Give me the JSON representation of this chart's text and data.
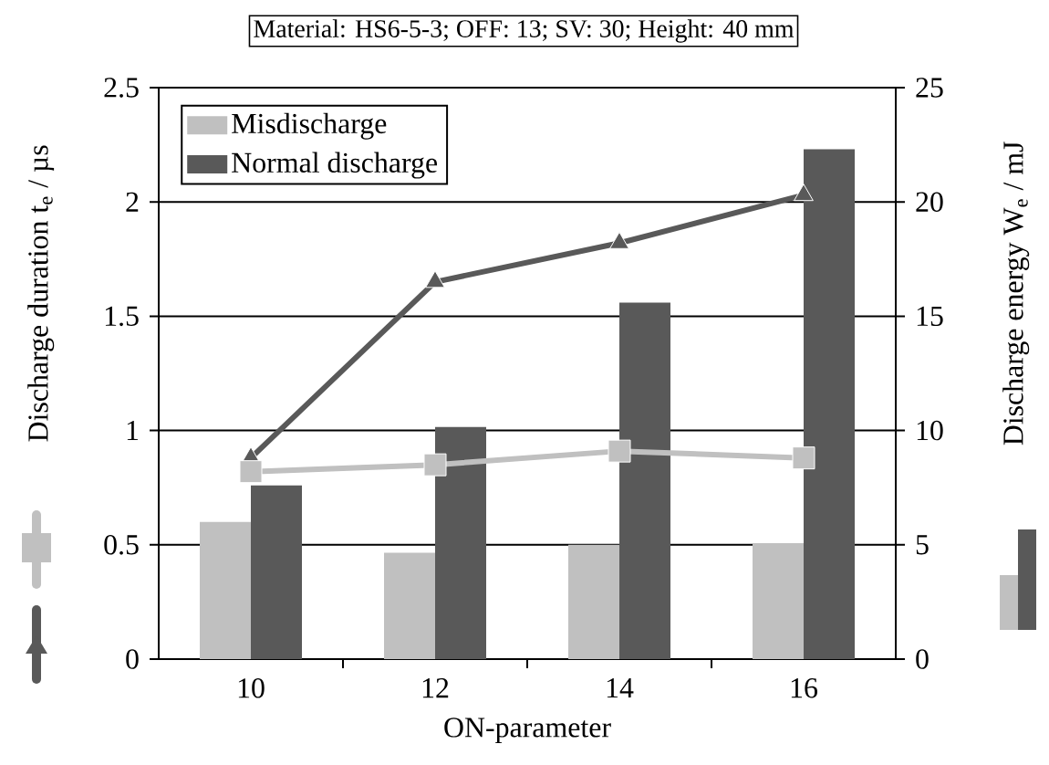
{
  "chart_data": {
    "type": "bar",
    "title": "Material: HS6-5-3; OFF: 13; SV: 30; Height: 40 mm",
    "xlabel": "ON-parameter",
    "ylabel": "Discharge duration t$_{e}$ / µs",
    "y2label": "Discharge energy W$_{e}$ / mJ",
    "categories": [
      "10",
      "12",
      "14",
      "16"
    ],
    "series": [
      {
        "name": "Misdischarge",
        "axis": "y2",
        "color": "#c0c0c0",
        "values": [
          6.0,
          4.65,
          5.0,
          5.05
        ]
      },
      {
        "name": "Normal discharge",
        "axis": "y2",
        "color": "#595959",
        "values": [
          7.6,
          10.15,
          15.6,
          22.3
        ]
      },
      {
        "type": "line",
        "axis": "y",
        "color": "#595959",
        "marker": "triangle",
        "values": [
          0.88,
          1.65,
          1.82,
          2.03
        ]
      },
      {
        "type": "line",
        "axis": "y",
        "color": "#c0c0c0",
        "marker": "square",
        "values": [
          0.82,
          0.85,
          0.91,
          0.88
        ]
      }
    ],
    "ylim": [
      0,
      2.5
    ],
    "yticks": [
      0,
      0.5,
      1,
      1.5,
      2,
      2.5
    ],
    "y2lim": [
      0,
      25
    ],
    "y2ticks": [
      0,
      5,
      10,
      15,
      20,
      25
    ],
    "grid": "y",
    "legend": "top left"
  }
}
